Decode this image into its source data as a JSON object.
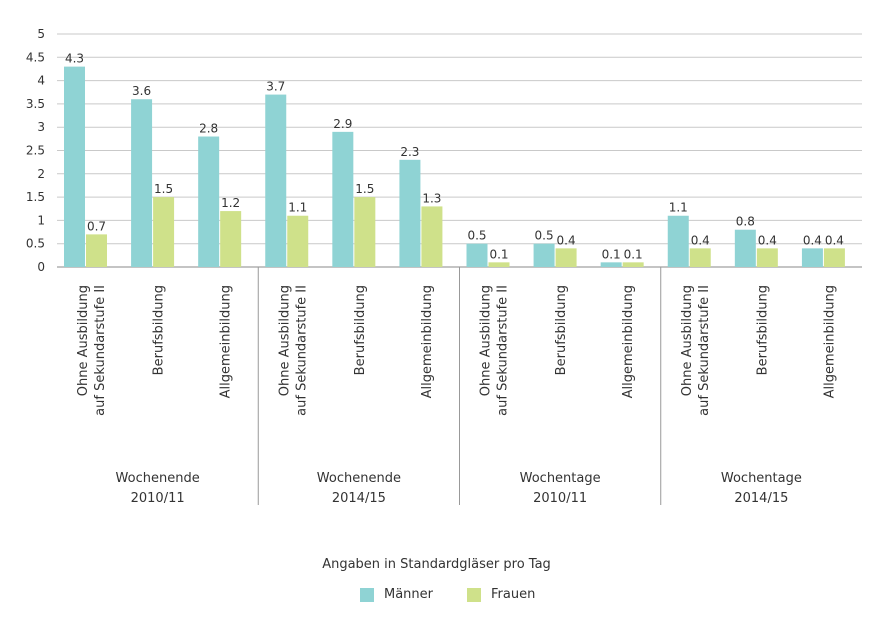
{
  "chart_data": {
    "type": "bar",
    "title": "",
    "xlabel": "",
    "ylabel": "",
    "ylim": [
      0,
      5
    ],
    "yticks": [
      "0",
      "0.5",
      "1",
      "1.5",
      "2",
      "2.5",
      "3",
      "3.5",
      "4",
      "4.5",
      "5"
    ],
    "grid": true,
    "groups": [
      {
        "label_lines": [
          "Wochenende",
          "2010/11"
        ],
        "categories": [
          {
            "label_lines": [
              "Ohne Ausbildung",
              "auf Sekundarstufe II"
            ],
            "values": [
              4.3,
              0.7
            ],
            "labels": [
              "4.3",
              "0.7"
            ]
          },
          {
            "label_lines": [
              "Berufsbildung"
            ],
            "values": [
              3.6,
              1.5
            ],
            "labels": [
              "3.6",
              "1.5"
            ]
          },
          {
            "label_lines": [
              "Allgemeinbildung"
            ],
            "values": [
              2.8,
              1.2
            ],
            "labels": [
              "2.8",
              "1.2"
            ]
          }
        ]
      },
      {
        "label_lines": [
          "Wochenende",
          "2014/15"
        ],
        "categories": [
          {
            "label_lines": [
              "Ohne Ausbildung",
              "auf Sekundarstufe II"
            ],
            "values": [
              3.7,
              1.1
            ],
            "labels": [
              "3.7",
              "1.1"
            ]
          },
          {
            "label_lines": [
              "Berufsbildung"
            ],
            "values": [
              2.9,
              1.5
            ],
            "labels": [
              "2.9",
              "1.5"
            ]
          },
          {
            "label_lines": [
              "Allgemeinbildung"
            ],
            "values": [
              2.3,
              1.3
            ],
            "labels": [
              "2.3",
              "1.3"
            ]
          }
        ]
      },
      {
        "label_lines": [
          "Wochentage",
          "2010/11"
        ],
        "categories": [
          {
            "label_lines": [
              "Ohne Ausbildung",
              "auf Sekundarstufe II"
            ],
            "values": [
              0.5,
              0.1
            ],
            "labels": [
              "0.5",
              "0.1"
            ]
          },
          {
            "label_lines": [
              "Berufsbildung"
            ],
            "values": [
              0.5,
              0.4
            ],
            "labels": [
              "0.5",
              "0.4"
            ]
          },
          {
            "label_lines": [
              "Allgemeinbildung"
            ],
            "values": [
              0.1,
              0.1
            ],
            "labels": [
              "0.1",
              "0.1"
            ]
          }
        ]
      },
      {
        "label_lines": [
          "Wochentage",
          "2014/15"
        ],
        "categories": [
          {
            "label_lines": [
              "Ohne Ausbildung",
              "auf Sekundarstufe II"
            ],
            "values": [
              1.1,
              0.4
            ],
            "labels": [
              "1.1",
              "0.4"
            ]
          },
          {
            "label_lines": [
              "Berufsbildung"
            ],
            "values": [
              0.8,
              0.4
            ],
            "labels": [
              "0.8",
              "0.4"
            ]
          },
          {
            "label_lines": [
              "Allgemeinbildung"
            ],
            "values": [
              0.4,
              0.4
            ],
            "labels": [
              "0.4",
              "0.4"
            ]
          }
        ]
      }
    ],
    "series": [
      {
        "name": "Männer",
        "color": "#8fd3d4"
      },
      {
        "name": "Frauen",
        "color": "#cfe18a"
      }
    ],
    "legend": {
      "caption": "Angaben in Standardgläser pro Tag",
      "placement": "bottom-center"
    }
  }
}
